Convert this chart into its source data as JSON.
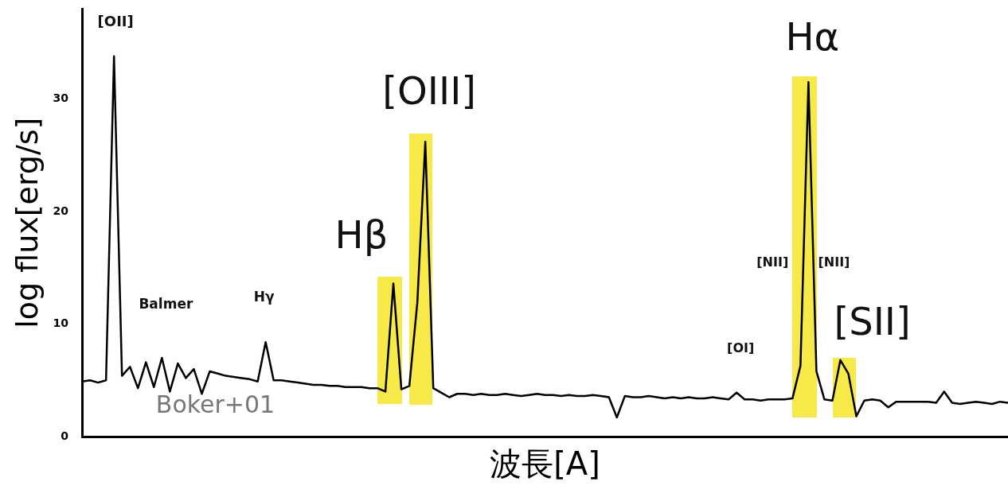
{
  "chart_data": {
    "type": "line",
    "xlabel": "波長[A]",
    "ylabel": "log flux[erg/s]",
    "categories": [
      null,
      null,
      null,
      null,
      null,
      null,
      null,
      null,
      null,
      null,
      null,
      null,
      null,
      null,
      null,
      null,
      null,
      null,
      null,
      null,
      null,
      null,
      null,
      null,
      null,
      null,
      null,
      null,
      null,
      null,
      null,
      null,
      null,
      null,
      null,
      null,
      null,
      null,
      null,
      null,
      null,
      null,
      null,
      null,
      null,
      null,
      null,
      null,
      null,
      null,
      null,
      null,
      null,
      null,
      null,
      null,
      null,
      null,
      null,
      null,
      null,
      null,
      null,
      null,
      null,
      null,
      null,
      null,
      null,
      null,
      null,
      null,
      null,
      null,
      null,
      null,
      null,
      null,
      null,
      null,
      null,
      null,
      null,
      null,
      null,
      null,
      null,
      null,
      null,
      null,
      null,
      null,
      null,
      null,
      null,
      null,
      null,
      null,
      null,
      null,
      null,
      null,
      null,
      null,
      null,
      null,
      null,
      null,
      null,
      null,
      null,
      null,
      null,
      null,
      null,
      null,
      null
    ],
    "values": [
      4.9,
      5.0,
      4.8,
      5.0,
      33.8,
      5.4,
      6.2,
      4.3,
      6.6,
      4.4,
      7.0,
      4.0,
      6.5,
      5.2,
      6.0,
      3.8,
      5.8,
      5.6,
      5.4,
      5.3,
      5.2,
      5.1,
      4.9,
      8.4,
      5.0,
      5.0,
      4.9,
      4.8,
      4.7,
      4.6,
      4.6,
      4.5,
      4.5,
      4.4,
      4.4,
      4.4,
      4.3,
      4.3,
      4.0,
      13.6,
      4.2,
      4.5,
      11.9,
      26.2,
      4.3,
      3.9,
      3.5,
      3.8,
      3.8,
      3.7,
      3.8,
      3.7,
      3.7,
      3.8,
      3.7,
      3.6,
      3.7,
      3.8,
      3.7,
      3.7,
      3.6,
      3.7,
      3.6,
      3.6,
      3.7,
      3.6,
      3.5,
      1.7,
      3.6,
      3.5,
      3.5,
      3.6,
      3.5,
      3.4,
      3.5,
      3.4,
      3.5,
      3.4,
      3.4,
      3.5,
      3.4,
      3.3,
      3.9,
      3.3,
      3.3,
      3.2,
      3.3,
      3.3,
      3.3,
      3.4,
      6.3,
      31.5,
      5.8,
      3.3,
      3.2,
      6.8,
      5.6,
      1.8,
      3.2,
      3.3,
      3.2,
      2.6,
      3.1,
      3.1,
      3.1,
      3.1,
      3.1,
      3.0,
      4.0,
      3.0,
      2.9,
      3.0,
      3.1,
      3.0,
      2.9,
      3.1,
      3.0
    ],
    "color": "#000000",
    "ylim": [
      0,
      38
    ],
    "yticks": [
      0,
      10,
      20,
      30
    ],
    "tick_labels": "y",
    "grid": false,
    "legend": false,
    "marker": "none",
    "line_style": "solid",
    "annotations": [
      "[OII]",
      "Balmer",
      "Hγ",
      "Hβ",
      "[OIII]",
      "Hα",
      "[NII]",
      "[NII]",
      "[OI]",
      "[SII]",
      "Boker+01"
    ]
  }
}
